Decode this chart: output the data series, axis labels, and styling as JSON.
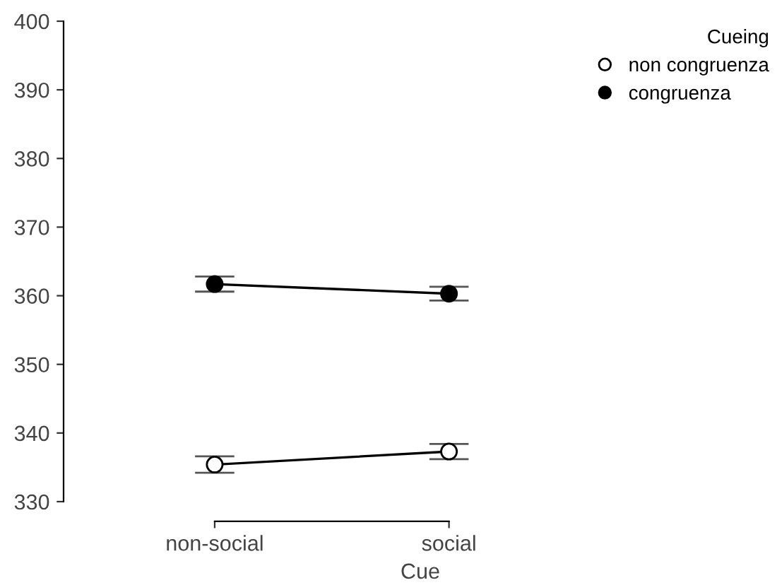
{
  "chart_data": {
    "type": "line",
    "xlabel": "Cue",
    "legend_title": "Cueing",
    "categories": [
      "non-social",
      "social"
    ],
    "series": [
      {
        "name": "non congruenza",
        "color": "#ffffff",
        "values": [
          335.4,
          337.3
        ],
        "errors": [
          1.2,
          1.1
        ]
      },
      {
        "name": "congruenza",
        "color": "#000000",
        "values": [
          361.7,
          360.3
        ],
        "errors": [
          1.1,
          1.0
        ]
      }
    ],
    "ylim": [
      330,
      400
    ],
    "yticks": [
      330,
      340,
      350,
      360,
      370,
      380,
      390,
      400
    ],
    "marker": "circle",
    "line_style": "solid",
    "grid": false,
    "legend": "top right"
  }
}
